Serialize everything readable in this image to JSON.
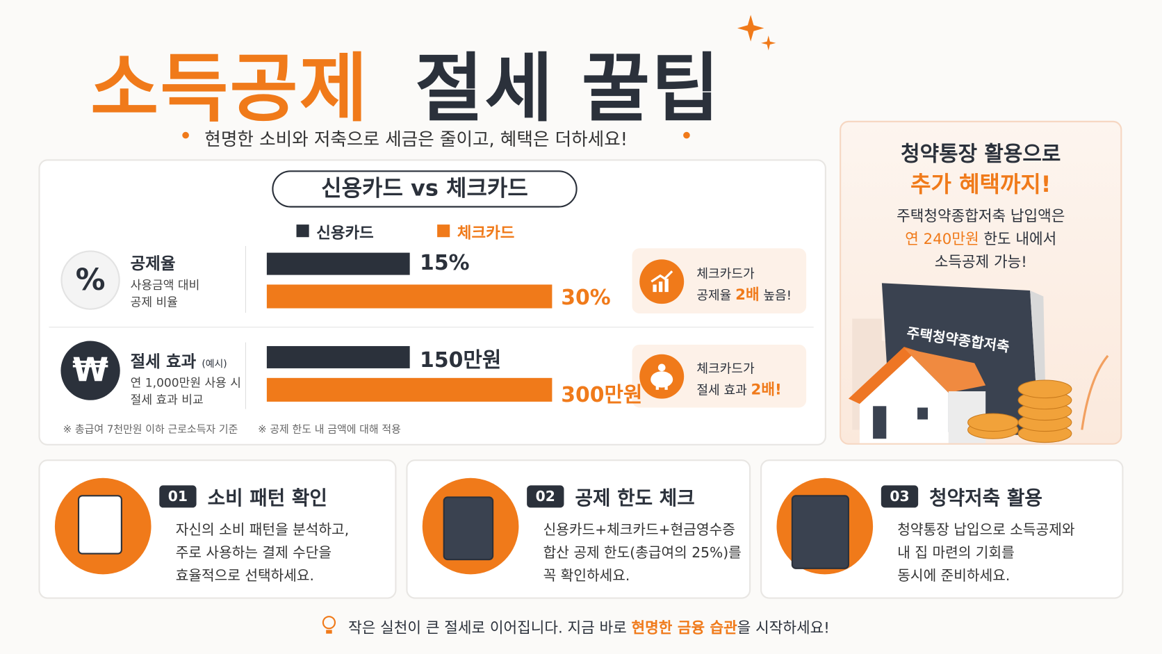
{
  "header": {
    "title_accent": "소득공제",
    "title_main": "절세 꿀팁",
    "subtitle": "현명한 소비와 저축으로 세금은 줄이고, 혜택은 더하세요!"
  },
  "comparison": {
    "title": "신용카드 vs 체크카드",
    "legend": [
      {
        "name": "신용카드",
        "color": "#2b313b"
      },
      {
        "name": "체크카드",
        "color": "#f07a1a"
      }
    ],
    "rows": [
      {
        "icon": "%",
        "label": "공제율",
        "desc": [
          "사용금액 대비",
          "공제 비율"
        ],
        "values": [
          15,
          30
        ],
        "value_labels": [
          "15%",
          "30%"
        ],
        "callout": {
          "line1": "체크카드가",
          "pre": "공제율",
          "highlight": "2배",
          "post": "높음!"
        }
      },
      {
        "icon": "₩",
        "label": "절세 효과",
        "label_note": "(예시)",
        "desc": [
          "연 1,000만원 사용 시",
          "절세 효과 비교"
        ],
        "values": [
          150,
          300
        ],
        "value_labels": [
          "150만원",
          "300만원"
        ],
        "callout": {
          "line1": "체크카드가",
          "pre": "절세 효과",
          "highlight": "2배!",
          "post": ""
        }
      }
    ],
    "notes": [
      "※ 총급여 7천만원 이하 근로소득자 기준",
      "※ 공제 한도 내 금액에 대해 적용"
    ]
  },
  "side": {
    "title": "청약통장 활용으로",
    "title_accent": "추가 혜택까지!",
    "line1": "주택청약종합저축 납입액은",
    "line2_accent": "연 240만원",
    "line2": "한도 내에서",
    "line3": "소득공제 가능!",
    "book_label": "주택청약종합저축"
  },
  "steps": [
    {
      "number": "01",
      "title": "소비 패턴 확인",
      "lines": [
        "자신의 소비 패턴을 분석하고,",
        "주로 사용하는 결제 수단을",
        "효율적으로 선택하세요."
      ]
    },
    {
      "number": "02",
      "title": "공제 한도 체크",
      "lines": [
        "신용카드+체크카드+현금영수증",
        "합산 공제 한도(총급여의 25%)를",
        "꼭 확인하세요."
      ]
    },
    {
      "number": "03",
      "title": "청약저축 활용",
      "lines": [
        "청약통장 납입으로 소득공제와",
        "내 집 마련의 기회를",
        "동시에 준비하세요."
      ]
    }
  ],
  "footer": {
    "pre": "작은 실천이 큰 절세로 이어집니다. 지금 바로",
    "highlight": "현명한 금융 습관",
    "post": "을 시작하세요!"
  }
}
